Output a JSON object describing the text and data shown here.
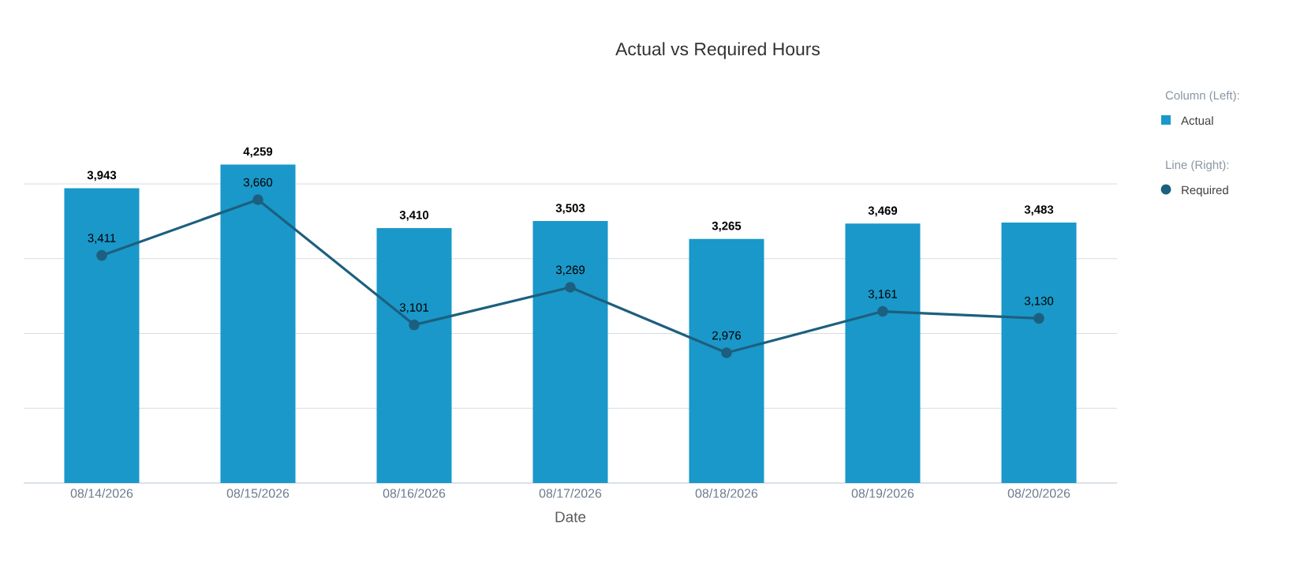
{
  "chart_data": {
    "type": "bar",
    "title": "Actual vs Required Hours",
    "xlabel": "Date",
    "categories": [
      "08/14/2026",
      "08/15/2026",
      "08/16/2026",
      "08/17/2026",
      "08/18/2026",
      "08/19/2026",
      "08/20/2026"
    ],
    "series": [
      {
        "name": "Actual",
        "color": "#1a98c9",
        "values": [
          3943,
          4259,
          3410,
          3503,
          3265,
          3469,
          3483
        ],
        "value_labels": [
          "3,943",
          "4,259",
          "3,410",
          "3,503",
          "3,265",
          "3,469",
          "3,483"
        ]
      },
      {
        "name": "Required",
        "type": "line",
        "axis": "y2",
        "color": "#1d5f7f",
        "marker": "circle",
        "values": [
          3411,
          3660,
          3101,
          3269,
          2976,
          3161,
          3130
        ],
        "value_labels": [
          "3,411",
          "3,660",
          "3,101",
          "3,269",
          "2,976",
          "3,161",
          "3,130"
        ]
      }
    ],
    "tick_labels": "x",
    "grid": "y",
    "legend": "top right",
    "annotations": [
      "Column (Left):",
      "Line (Right):"
    ]
  }
}
